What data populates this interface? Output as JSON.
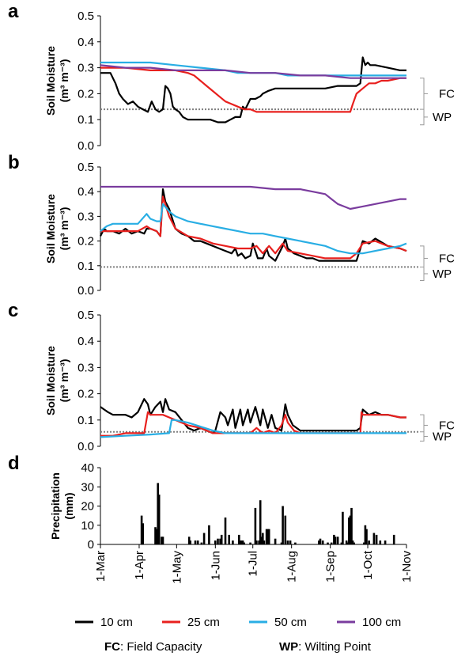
{
  "colors": {
    "10cm": "#000000",
    "25cm": "#e8201e",
    "50cm": "#29aee4",
    "100cm": "#7a3c9e",
    "reference": "#808080",
    "bar": "#000000"
  },
  "x_axis": {
    "tick_labels": [
      "1-Mar",
      "1-Apr",
      "1-May",
      "1-Jun",
      "1-Jul",
      "1-Aug",
      "1-Sep",
      "1-Oct",
      "1-Nov"
    ],
    "tick_days": [
      0,
      31,
      61,
      92,
      122,
      153,
      184,
      214,
      245
    ],
    "range_days": [
      0,
      245
    ]
  },
  "legend": {
    "items": [
      {
        "label": "10 cm",
        "color": "#000000"
      },
      {
        "label": "25 cm",
        "color": "#e8201e"
      },
      {
        "label": "50 cm",
        "color": "#29aee4"
      },
      {
        "label": "100 cm",
        "color": "#7a3c9e"
      }
    ],
    "notes": [
      {
        "abbr": "FC",
        "text": ": Field Capacity"
      },
      {
        "abbr": "WP",
        "text": ": Wilting Point"
      }
    ]
  },
  "chart_data": [
    {
      "panel": "a",
      "type": "line",
      "ylabel_line1": "Soil Moisture",
      "ylabel_line2": "(m³ m⁻³)",
      "ylim": [
        0,
        0.5
      ],
      "yticks": [
        "0.0",
        "0.1",
        "0.2",
        "0.3",
        "0.4",
        "0.5"
      ],
      "wp_line": 0.14,
      "bracket": {
        "fc_label": "FC",
        "wp_label": "WP",
        "top": 0.26,
        "mid": 0.2,
        "bottom": 0.14,
        "wp_bottom": 0.08
      },
      "series": [
        {
          "key": "10cm",
          "x": [
            0,
            8,
            12,
            15,
            18,
            22,
            26,
            30,
            34,
            38,
            41,
            44,
            47,
            50,
            52,
            54,
            56,
            58,
            60,
            63,
            66,
            70,
            76,
            82,
            88,
            94,
            100,
            104,
            108,
            112,
            114,
            116,
            120,
            124,
            128,
            130,
            134,
            140,
            150,
            160,
            170,
            180,
            190,
            200,
            205,
            208,
            210,
            212,
            214,
            216,
            220,
            230,
            240,
            245
          ],
          "y": [
            0.28,
            0.28,
            0.24,
            0.2,
            0.18,
            0.16,
            0.17,
            0.15,
            0.14,
            0.13,
            0.17,
            0.14,
            0.13,
            0.14,
            0.23,
            0.22,
            0.2,
            0.15,
            0.14,
            0.13,
            0.11,
            0.1,
            0.1,
            0.1,
            0.1,
            0.09,
            0.09,
            0.1,
            0.11,
            0.11,
            0.15,
            0.14,
            0.18,
            0.18,
            0.19,
            0.2,
            0.21,
            0.22,
            0.22,
            0.22,
            0.22,
            0.22,
            0.23,
            0.23,
            0.23,
            0.24,
            0.34,
            0.31,
            0.32,
            0.31,
            0.31,
            0.3,
            0.29,
            0.29
          ]
        },
        {
          "key": "25cm",
          "x": [
            0,
            20,
            40,
            60,
            70,
            75,
            80,
            85,
            90,
            95,
            100,
            105,
            110,
            115,
            120,
            125,
            130,
            140,
            150,
            160,
            170,
            180,
            190,
            200,
            202,
            205,
            210,
            215,
            220,
            225,
            230,
            240,
            245
          ],
          "y": [
            0.3,
            0.3,
            0.29,
            0.29,
            0.28,
            0.27,
            0.25,
            0.23,
            0.21,
            0.19,
            0.17,
            0.16,
            0.15,
            0.14,
            0.14,
            0.13,
            0.13,
            0.13,
            0.13,
            0.13,
            0.13,
            0.13,
            0.13,
            0.13,
            0.16,
            0.2,
            0.22,
            0.24,
            0.24,
            0.25,
            0.25,
            0.26,
            0.26
          ]
        },
        {
          "key": "50cm",
          "x": [
            0,
            40,
            60,
            80,
            100,
            110,
            120,
            130,
            140,
            150,
            160,
            170,
            180,
            200,
            220,
            245
          ],
          "y": [
            0.32,
            0.32,
            0.31,
            0.3,
            0.29,
            0.28,
            0.28,
            0.28,
            0.28,
            0.27,
            0.27,
            0.27,
            0.27,
            0.27,
            0.27,
            0.27
          ]
        },
        {
          "key": "100cm",
          "x": [
            0,
            20,
            40,
            60,
            80,
            100,
            120,
            140,
            160,
            180,
            200,
            220,
            245
          ],
          "y": [
            0.31,
            0.3,
            0.3,
            0.29,
            0.29,
            0.29,
            0.28,
            0.28,
            0.27,
            0.27,
            0.26,
            0.26,
            0.26
          ]
        }
      ]
    },
    {
      "panel": "b",
      "type": "line",
      "ylabel_line1": "Soil Moisture",
      "ylabel_line2": "(m³ m⁻³)",
      "ylim": [
        0,
        0.5
      ],
      "yticks": [
        "0.0",
        "0.1",
        "0.2",
        "0.3",
        "0.4",
        "0.5"
      ],
      "wp_line": 0.095,
      "bracket": {
        "fc_label": "FC",
        "wp_label": "WP",
        "top": 0.18,
        "mid": 0.13,
        "bottom": 0.095,
        "wp_bottom": 0.04
      },
      "series": [
        {
          "key": "10cm",
          "x": [
            0,
            3,
            5,
            10,
            15,
            20,
            25,
            30,
            35,
            37,
            40,
            45,
            48,
            50,
            52,
            55,
            60,
            65,
            70,
            75,
            80,
            85,
            90,
            95,
            100,
            105,
            108,
            110,
            113,
            116,
            120,
            122,
            124,
            126,
            130,
            133,
            135,
            140,
            146,
            148,
            150,
            155,
            160,
            165,
            170,
            175,
            180,
            185,
            190,
            200,
            205,
            210,
            215,
            220,
            230,
            240,
            245
          ],
          "y": [
            0.22,
            0.25,
            0.24,
            0.24,
            0.23,
            0.25,
            0.23,
            0.24,
            0.23,
            0.25,
            0.25,
            0.24,
            0.22,
            0.41,
            0.36,
            0.33,
            0.25,
            0.23,
            0.22,
            0.2,
            0.2,
            0.19,
            0.18,
            0.17,
            0.16,
            0.15,
            0.17,
            0.14,
            0.15,
            0.13,
            0.14,
            0.19,
            0.16,
            0.13,
            0.13,
            0.17,
            0.14,
            0.12,
            0.18,
            0.21,
            0.17,
            0.15,
            0.14,
            0.13,
            0.13,
            0.12,
            0.12,
            0.12,
            0.12,
            0.12,
            0.12,
            0.2,
            0.19,
            0.21,
            0.18,
            0.17,
            0.16
          ]
        },
        {
          "key": "25cm",
          "x": [
            0,
            5,
            10,
            20,
            30,
            37,
            40,
            45,
            48,
            50,
            55,
            60,
            70,
            80,
            90,
            100,
            110,
            120,
            125,
            130,
            135,
            140,
            146,
            150,
            160,
            170,
            180,
            190,
            200,
            205,
            210,
            220,
            230,
            240,
            245
          ],
          "y": [
            0.24,
            0.24,
            0.24,
            0.24,
            0.24,
            0.26,
            0.25,
            0.24,
            0.22,
            0.38,
            0.3,
            0.25,
            0.22,
            0.21,
            0.19,
            0.18,
            0.17,
            0.17,
            0.18,
            0.15,
            0.18,
            0.15,
            0.19,
            0.16,
            0.15,
            0.14,
            0.13,
            0.13,
            0.13,
            0.15,
            0.19,
            0.2,
            0.18,
            0.17,
            0.16
          ]
        },
        {
          "key": "50cm",
          "x": [
            0,
            5,
            10,
            20,
            30,
            37,
            40,
            45,
            48,
            50,
            55,
            60,
            70,
            80,
            90,
            100,
            110,
            120,
            130,
            140,
            150,
            160,
            170,
            180,
            190,
            200,
            210,
            220,
            230,
            240,
            245
          ],
          "y": [
            0.24,
            0.26,
            0.27,
            0.27,
            0.27,
            0.31,
            0.29,
            0.28,
            0.28,
            0.35,
            0.32,
            0.3,
            0.28,
            0.27,
            0.26,
            0.25,
            0.24,
            0.23,
            0.23,
            0.22,
            0.21,
            0.2,
            0.19,
            0.18,
            0.16,
            0.15,
            0.15,
            0.16,
            0.17,
            0.18,
            0.19
          ]
        },
        {
          "key": "100cm",
          "x": [
            0,
            20,
            40,
            60,
            80,
            100,
            120,
            140,
            160,
            170,
            180,
            185,
            190,
            195,
            200,
            210,
            220,
            230,
            240,
            245
          ],
          "y": [
            0.42,
            0.42,
            0.42,
            0.42,
            0.42,
            0.42,
            0.42,
            0.41,
            0.41,
            0.4,
            0.39,
            0.37,
            0.35,
            0.34,
            0.33,
            0.34,
            0.35,
            0.36,
            0.37,
            0.37
          ]
        }
      ]
    },
    {
      "panel": "c",
      "type": "line",
      "ylabel_line1": "Soil Moisture",
      "ylabel_line2": "(m³ m⁻³)",
      "ylim": [
        0,
        0.5
      ],
      "yticks": [
        "0.0",
        "0.1",
        "0.2",
        "0.3",
        "0.4",
        "0.5"
      ],
      "wp_line": 0.055,
      "bracket": {
        "fc_label": "FC",
        "wp_label": "WP",
        "top": 0.12,
        "mid": 0.08,
        "bottom": 0.055,
        "wp_bottom": 0.02
      },
      "series": [
        {
          "key": "10cm",
          "x": [
            0,
            3,
            6,
            10,
            15,
            20,
            25,
            30,
            35,
            38,
            40,
            44,
            48,
            50,
            52,
            55,
            60,
            65,
            70,
            75,
            80,
            85,
            90,
            92,
            96,
            100,
            102,
            106,
            108,
            112,
            114,
            118,
            120,
            124,
            128,
            130,
            134,
            137,
            140,
            145,
            148,
            150,
            154,
            160,
            170,
            180,
            190,
            200,
            205,
            208,
            210,
            215,
            220,
            225,
            230,
            240,
            245
          ],
          "y": [
            0.15,
            0.14,
            0.13,
            0.12,
            0.12,
            0.12,
            0.11,
            0.13,
            0.18,
            0.16,
            0.12,
            0.15,
            0.17,
            0.13,
            0.18,
            0.14,
            0.13,
            0.1,
            0.07,
            0.06,
            0.07,
            0.06,
            0.05,
            0.06,
            0.13,
            0.11,
            0.08,
            0.14,
            0.07,
            0.14,
            0.08,
            0.14,
            0.09,
            0.15,
            0.08,
            0.14,
            0.07,
            0.12,
            0.07,
            0.06,
            0.16,
            0.12,
            0.08,
            0.06,
            0.06,
            0.06,
            0.06,
            0.06,
            0.06,
            0.07,
            0.14,
            0.12,
            0.13,
            0.12,
            0.12,
            0.11,
            0.11
          ]
        },
        {
          "key": "25cm",
          "x": [
            0,
            10,
            20,
            30,
            35,
            38,
            40,
            45,
            50,
            55,
            60,
            70,
            80,
            85,
            90,
            100,
            110,
            120,
            125,
            130,
            135,
            140,
            145,
            148,
            150,
            155,
            160,
            170,
            180,
            190,
            200,
            208,
            209,
            210,
            220,
            230,
            240,
            245
          ],
          "y": [
            0.04,
            0.04,
            0.05,
            0.05,
            0.05,
            0.13,
            0.12,
            0.12,
            0.12,
            0.11,
            0.1,
            0.08,
            0.07,
            0.06,
            0.05,
            0.05,
            0.05,
            0.05,
            0.07,
            0.05,
            0.06,
            0.05,
            0.08,
            0.12,
            0.09,
            0.06,
            0.05,
            0.05,
            0.05,
            0.05,
            0.05,
            0.05,
            0.13,
            0.12,
            0.12,
            0.12,
            0.11,
            0.11
          ]
        },
        {
          "key": "50cm",
          "x": [
            0,
            20,
            40,
            55,
            57,
            60,
            70,
            80,
            90,
            100,
            120,
            140,
            160,
            180,
            200,
            220,
            245
          ],
          "y": [
            0.035,
            0.04,
            0.045,
            0.05,
            0.1,
            0.1,
            0.09,
            0.075,
            0.06,
            0.05,
            0.05,
            0.05,
            0.05,
            0.05,
            0.05,
            0.05,
            0.05
          ]
        }
      ]
    },
    {
      "panel": "d",
      "type": "bar",
      "ylabel_line1": "Precipitation",
      "ylabel_line2": "(mm)",
      "ylim": [
        0,
        40
      ],
      "yticks": [
        "0",
        "10",
        "20",
        "30",
        "40"
      ],
      "bars": {
        "x": [
          33,
          34,
          44,
          45,
          46,
          47,
          49,
          50,
          71,
          72,
          76,
          78,
          81,
          83,
          87,
          92,
          94,
          96,
          97,
          100,
          103,
          106,
          111,
          112,
          113,
          114,
          115,
          120,
          124,
          125,
          127,
          128,
          129,
          130,
          131,
          133,
          134,
          135,
          140,
          145,
          146,
          148,
          150,
          152,
          156,
          175,
          176,
          178,
          182,
          185,
          187,
          188,
          190,
          193,
          194,
          197,
          198,
          199,
          200,
          201,
          202,
          203,
          211,
          212,
          213,
          215,
          219,
          221,
          224,
          228,
          235
        ],
        "y": [
          15,
          11,
          9,
          8,
          32,
          26,
          4,
          4,
          4,
          2,
          2,
          2,
          1,
          6,
          10,
          2,
          3,
          3,
          5,
          14,
          5,
          2,
          5,
          2,
          2,
          2,
          1,
          1,
          19,
          2,
          2,
          23,
          4,
          6,
          2,
          8,
          8,
          8,
          3,
          1,
          20,
          15,
          2,
          2,
          1,
          2,
          3,
          2,
          1,
          1,
          5,
          4,
          4,
          1,
          17,
          2,
          1,
          14,
          15,
          19,
          2,
          1,
          1,
          10,
          8,
          2,
          6,
          5,
          2,
          2,
          5
        ]
      }
    }
  ]
}
